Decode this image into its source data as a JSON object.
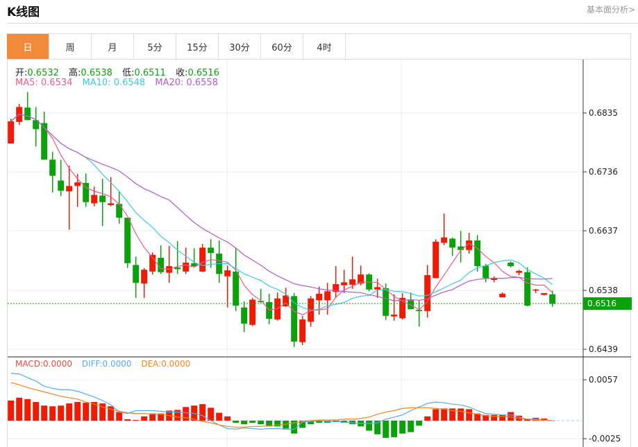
{
  "header": {
    "title": "K线图",
    "more_link": "基本面分析>"
  },
  "tabs": [
    "日",
    "周",
    "月",
    "5分",
    "15分",
    "30分",
    "60分",
    "4时"
  ],
  "active_tab": 0,
  "ohlc_legend": {
    "open_label": "开:",
    "open": "0.6532",
    "high_label": "高:",
    "high": "0.6538",
    "low_label": "低:",
    "low": "0.6511",
    "close_label": "收:",
    "close": "0.6516"
  },
  "ma_legend": {
    "ma5": "MA5: 0.6534",
    "ma10": "MA10: 0.6548",
    "ma20": "MA20: 0.6558"
  },
  "macd_legend": {
    "macd": "MACD:0.0000",
    "diff": "DIFF:0.0000",
    "dea": "DEA:0.0000"
  },
  "current_price": "0.6516",
  "colors": {
    "up": "#f21a00",
    "down": "#0aa10a",
    "ma5": "#ef5a8c",
    "ma10": "#3ec9e0",
    "ma20": "#b15ccc",
    "diff": "#5aaaf0",
    "dea": "#f5821f",
    "accent": "#f28a3c"
  },
  "chart_data": [
    {
      "type": "candlestick",
      "title": "K线图",
      "y_ticks": [
        "0.6835",
        "0.6736",
        "0.6637",
        "0.6538",
        "0.6439"
      ],
      "ylim": [
        0.6439,
        0.6835
      ],
      "ma_periods": [
        5,
        10,
        20
      ],
      "ohlc": [
        [
          0.6784,
          0.6825,
          0.6784,
          0.6821
        ],
        [
          0.682,
          0.685,
          0.6815,
          0.6845
        ],
        [
          0.6844,
          0.687,
          0.6823,
          0.6823
        ],
        [
          0.6823,
          0.6845,
          0.6779,
          0.6808
        ],
        [
          0.6818,
          0.6837,
          0.6757,
          0.6757
        ],
        [
          0.6757,
          0.677,
          0.6702,
          0.673
        ],
        [
          0.6722,
          0.6757,
          0.6696,
          0.6705
        ],
        [
          0.6704,
          0.6747,
          0.664,
          0.6713
        ],
        [
          0.6713,
          0.6733,
          0.6678,
          0.6719
        ],
        [
          0.6718,
          0.6734,
          0.6678,
          0.6686
        ],
        [
          0.6684,
          0.6712,
          0.6679,
          0.6698
        ],
        [
          0.6697,
          0.6725,
          0.6646,
          0.6686
        ],
        [
          0.6681,
          0.6728,
          0.6679,
          0.6684
        ],
        [
          0.6683,
          0.6704,
          0.665,
          0.666
        ],
        [
          0.666,
          0.666,
          0.6576,
          0.6584
        ],
        [
          0.6581,
          0.6595,
          0.6526,
          0.6551
        ],
        [
          0.655,
          0.6576,
          0.6526,
          0.6573
        ],
        [
          0.657,
          0.6602,
          0.6565,
          0.6598
        ],
        [
          0.6593,
          0.6614,
          0.6566,
          0.6569
        ],
        [
          0.6568,
          0.6613,
          0.6551,
          0.6579
        ],
        [
          0.6577,
          0.6621,
          0.6566,
          0.6574
        ],
        [
          0.657,
          0.661,
          0.6566,
          0.6585
        ],
        [
          0.6584,
          0.6609,
          0.6578,
          0.6579
        ],
        [
          0.657,
          0.6616,
          0.6569,
          0.661
        ],
        [
          0.661,
          0.6624,
          0.6576,
          0.6601
        ],
        [
          0.66,
          0.6622,
          0.6551,
          0.6566
        ],
        [
          0.6562,
          0.658,
          0.651,
          0.6572
        ],
        [
          0.657,
          0.6609,
          0.6504,
          0.6513
        ],
        [
          0.651,
          0.652,
          0.6469,
          0.6483
        ],
        [
          0.6481,
          0.6526,
          0.6479,
          0.6523
        ],
        [
          0.6521,
          0.6541,
          0.6518,
          0.6519
        ],
        [
          0.6519,
          0.6533,
          0.6482,
          0.6491
        ],
        [
          0.649,
          0.6535,
          0.6488,
          0.6525
        ],
        [
          0.6512,
          0.6543,
          0.6511,
          0.653
        ],
        [
          0.6529,
          0.6534,
          0.6444,
          0.6453
        ],
        [
          0.6452,
          0.6496,
          0.6447,
          0.649
        ],
        [
          0.6486,
          0.6529,
          0.6478,
          0.6525
        ],
        [
          0.6522,
          0.6545,
          0.6498,
          0.6533
        ],
        [
          0.6522,
          0.6551,
          0.6498,
          0.6537
        ],
        [
          0.6536,
          0.6579,
          0.6526,
          0.6549
        ],
        [
          0.6547,
          0.6573,
          0.6534,
          0.6552
        ],
        [
          0.6548,
          0.6595,
          0.6541,
          0.6557
        ],
        [
          0.655,
          0.658,
          0.6547,
          0.6565
        ],
        [
          0.6565,
          0.6567,
          0.6537,
          0.654
        ],
        [
          0.654,
          0.6558,
          0.6526,
          0.6544
        ],
        [
          0.6542,
          0.655,
          0.6489,
          0.6496
        ],
        [
          0.6495,
          0.6532,
          0.6488,
          0.6498
        ],
        [
          0.6492,
          0.6534,
          0.649,
          0.6526
        ],
        [
          0.6522,
          0.6535,
          0.6507,
          0.6507
        ],
        [
          0.6506,
          0.6521,
          0.6478,
          0.6504
        ],
        [
          0.6504,
          0.6581,
          0.6493,
          0.6564
        ],
        [
          0.6559,
          0.6624,
          0.6559,
          0.662
        ],
        [
          0.6618,
          0.6667,
          0.6614,
          0.6627
        ],
        [
          0.6625,
          0.6627,
          0.6596,
          0.661
        ],
        [
          0.6612,
          0.6638,
          0.6585,
          0.6606
        ],
        [
          0.6606,
          0.6635,
          0.66,
          0.6622
        ],
        [
          0.6622,
          0.6631,
          0.657,
          0.6579
        ],
        [
          0.658,
          0.6583,
          0.6552,
          0.6559
        ],
        [
          0.6556,
          0.6562,
          0.6552,
          0.6559
        ],
        [
          0.6527,
          0.6535,
          0.6527,
          0.6533
        ],
        [
          0.6585,
          0.6587,
          0.6577,
          0.6579
        ],
        [
          0.6568,
          0.6573,
          0.6564,
          0.6571
        ],
        [
          0.6569,
          0.6577,
          0.6512,
          0.6513
        ],
        [
          0.6539,
          0.6541,
          0.6534,
          0.654
        ],
        [
          0.6531,
          0.6534,
          0.653,
          0.6534
        ],
        [
          0.6532,
          0.6538,
          0.6511,
          0.6516
        ]
      ]
    },
    {
      "type": "macd",
      "y_ticks": [
        "0.0057",
        "-0.0025"
      ],
      "ylim": [
        -0.0025,
        0.0057
      ],
      "hist": [
        0.0028,
        0.0032,
        0.003,
        0.0026,
        0.0021,
        0.002,
        0.0021,
        0.0024,
        0.0026,
        0.0025,
        0.0026,
        0.0024,
        0.002,
        0.0012,
        0.0002,
        0.0001,
        0.0006,
        0.001,
        0.001,
        0.0014,
        0.0015,
        0.0019,
        0.0021,
        0.0023,
        0.0018,
        0.0011,
        0.0006,
        -0.0003,
        -0.0005,
        -0.0003,
        -0.0005,
        -0.0008,
        -0.0008,
        -0.0011,
        -0.0018,
        -0.001,
        -0.0005,
        -0.0003,
        -0.0003,
        -0.0002,
        -0.0003,
        -0.0005,
        -0.0008,
        -0.0014,
        -0.0019,
        -0.0024,
        -0.0023,
        -0.0018,
        -0.0016,
        -0.0007,
        0.0006,
        0.0016,
        0.0017,
        0.0017,
        0.0017,
        0.0016,
        0.001,
        0.0008,
        0.0008,
        0.0008,
        0.0012,
        0.0007,
        0.0002,
        0.0004,
        0.0003,
        0.0
      ],
      "diff": [
        0.0066,
        0.0065,
        0.006,
        0.0055,
        0.0048,
        0.0045,
        0.0043,
        0.0043,
        0.0041,
        0.0037,
        0.0033,
        0.0028,
        0.0022,
        0.0012,
        0.001,
        0.0014,
        0.0014,
        0.0014,
        0.0013,
        0.0012,
        0.0012,
        0.0011,
        0.001,
        0.0007,
        0.0,
        -0.0006,
        -0.0011,
        -0.0012,
        -0.001,
        -0.0011,
        -0.0012,
        -0.0011,
        -0.0011,
        -0.0012,
        -0.0012,
        -0.0002,
        -0.0001,
        0.0,
        -0.0001,
        -0.0001,
        -0.0002,
        -0.0003,
        -0.0004,
        -0.0004,
        -0.0003,
        0.0002,
        0.0005,
        0.0008,
        0.0014,
        0.0019,
        0.0024,
        0.0026,
        0.0025,
        0.0023,
        0.0022,
        0.0019,
        0.0014,
        0.001,
        0.0009,
        0.0008,
        0.0008,
        0.0005,
        0.0002,
        0.0002,
        0.0001,
        0.0
      ],
      "dea": [
        0.0053,
        0.005,
        0.0046,
        0.0043,
        0.004,
        0.0037,
        0.0034,
        0.0032,
        0.003,
        0.0026,
        0.0023,
        0.0019,
        0.0016,
        0.0013,
        0.0011,
        0.001,
        0.001,
        0.0009,
        0.0009,
        0.0007,
        0.0005,
        0.0004,
        0.0002,
        -0.0001,
        -0.0003,
        -0.0006,
        -0.0008,
        -0.0009,
        -0.0009,
        -0.0008,
        -0.0008,
        -0.0007,
        -0.0006,
        -0.0005,
        -0.0003,
        -0.0001,
        0.0,
        0.0001,
        0.0001,
        0.0001,
        0.0002,
        0.0002,
        0.0003,
        0.0005,
        0.0009,
        0.0012,
        0.0014,
        0.0017,
        0.0018,
        0.0018,
        0.0018,
        0.0017,
        0.0016,
        0.0014,
        0.0013,
        0.0011,
        0.0009,
        0.0007,
        0.0006,
        0.0006,
        0.0005,
        0.0003,
        0.0002,
        0.0001,
        0.0001,
        0.0
      ]
    }
  ]
}
